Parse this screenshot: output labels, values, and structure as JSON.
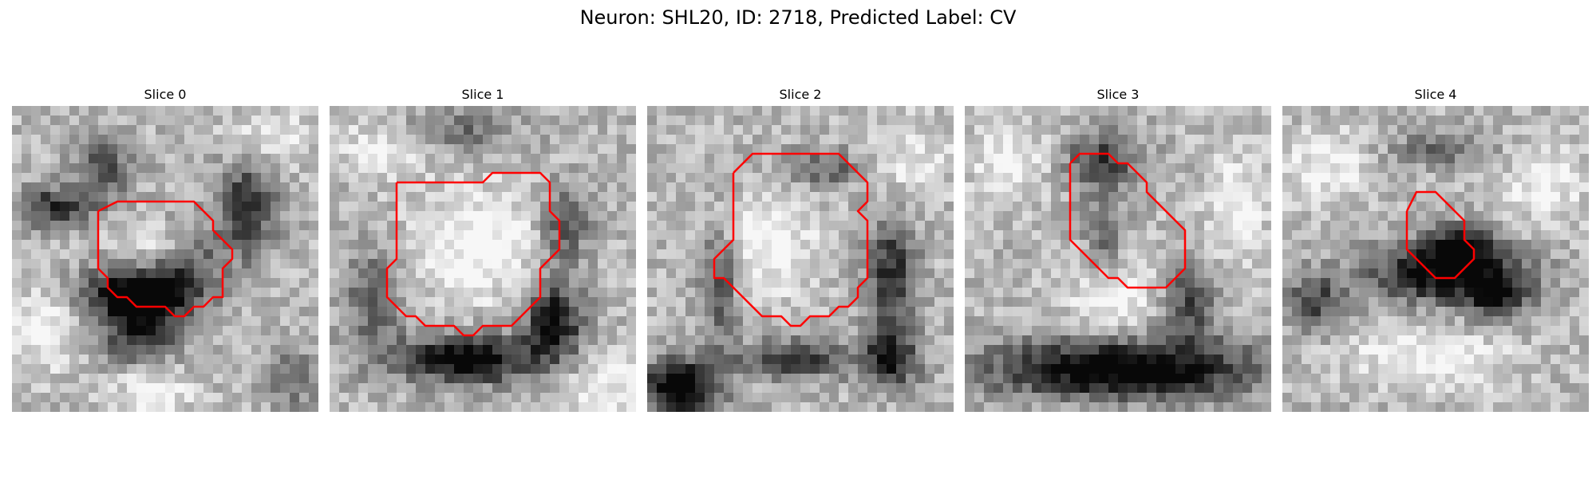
{
  "figure": {
    "title": "Neuron: SHL20, ID: 2718, Predicted Label: CV",
    "contour_color": "#ff0000",
    "colormap": "grayscale"
  },
  "slices": [
    {
      "title": "Slice 0",
      "seed": 11,
      "dark_regions": "ring of dark pixels around the contour, darkest below it"
    },
    {
      "title": "Slice 1",
      "seed": 23,
      "dark_regions": "dark band along the bottom-right of the contour"
    },
    {
      "title": "Slice 2",
      "seed": 37,
      "dark_regions": "dark ring around the contour, dark bottom-left corner"
    },
    {
      "title": "Slice 3",
      "seed": 51,
      "dark_regions": "dark band across the bottom of the panel"
    },
    {
      "title": "Slice 4",
      "seed": 67,
      "dark_regions": "dark blob inside and below the contour"
    }
  ]
}
